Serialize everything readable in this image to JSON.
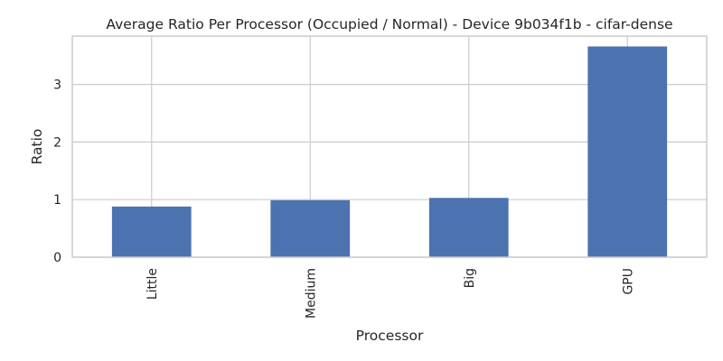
{
  "chart_data": {
    "type": "bar",
    "title": "Average Ratio Per Processor (Occupied / Normal) - Device 9b034f1b - cifar-dense",
    "xlabel": "Processor",
    "ylabel": "Ratio",
    "categories": [
      "Little",
      "Medium",
      "Big",
      "GPU"
    ],
    "values": [
      0.88,
      0.99,
      1.03,
      3.66
    ],
    "ylim": [
      0,
      3.84
    ],
    "yticks": [
      0,
      1,
      2,
      3
    ],
    "ytick_labels": [
      "0",
      "1",
      "2",
      "3"
    ],
    "grid": true,
    "legend": "none",
    "bar_color": "#4c72b0",
    "grid_color": "#cccccc",
    "spine_color": "#cccccc",
    "x_tick_rotation": "vertical"
  }
}
